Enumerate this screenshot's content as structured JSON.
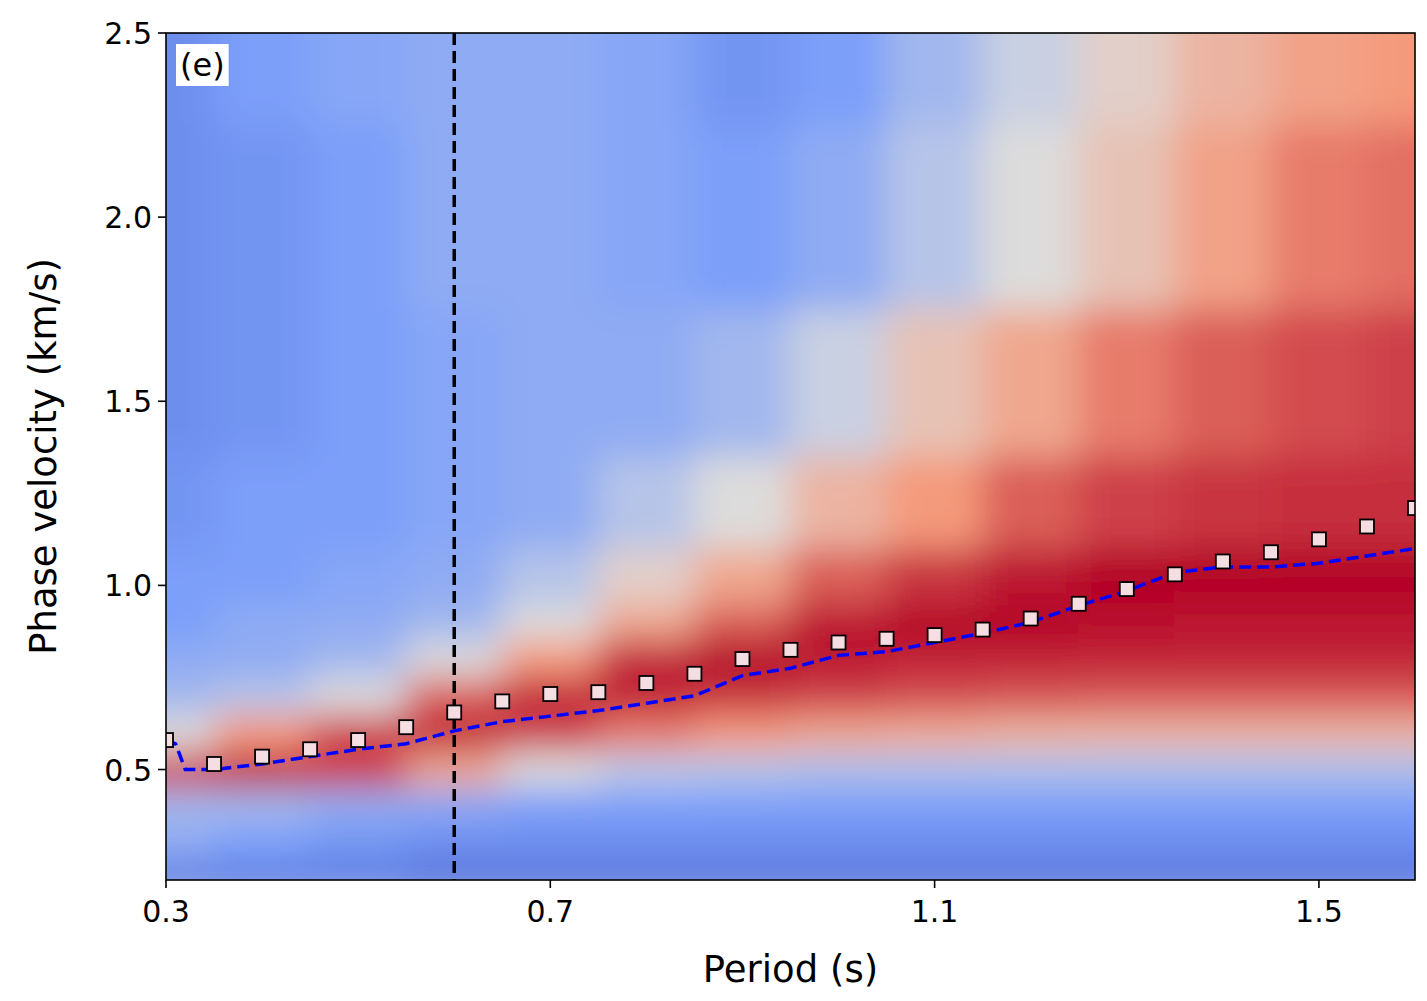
{
  "chart_data": {
    "type": "heatmap",
    "x_label": "Period (s)",
    "y_label": "Phase velocity (km/s)",
    "panel_label": "(e)",
    "xlim": [
      0.3,
      1.6
    ],
    "ylim": [
      0.2,
      2.5
    ],
    "xticks": [
      0.3,
      0.7,
      1.1,
      1.5
    ],
    "yticks": [
      0.5,
      {
        "value": 1.0,
        "label": "1.0"
      },
      1.5,
      {
        "value": 2.0,
        "label": "2.0"
      },
      2.5
    ],
    "heatmap": {
      "x": [
        0.3,
        0.4,
        0.5,
        0.6,
        0.7,
        0.8,
        0.9,
        1.0,
        1.1,
        1.2,
        1.3,
        1.4,
        1.5,
        1.6
      ],
      "y": [
        0.2,
        0.3,
        0.4,
        0.5,
        0.6,
        0.7,
        0.8,
        0.9,
        1.0,
        1.2,
        1.5,
        2.0,
        2.5
      ],
      "range": [
        0,
        1
      ],
      "values": [
        [
          0.15,
          0.15,
          0.15,
          0.12,
          0.12,
          0.12,
          0.12,
          0.12,
          0.12,
          0.12,
          0.12,
          0.12,
          0.12,
          0.12
        ],
        [
          0.3,
          0.25,
          0.22,
          0.2,
          0.2,
          0.2,
          0.2,
          0.2,
          0.2,
          0.2,
          0.2,
          0.2,
          0.2,
          0.2
        ],
        [
          0.35,
          0.35,
          0.3,
          0.28,
          0.25,
          0.25,
          0.25,
          0.25,
          0.25,
          0.25,
          0.25,
          0.25,
          0.25,
          0.25
        ],
        [
          0.9,
          0.95,
          0.9,
          0.7,
          0.5,
          0.42,
          0.4,
          0.38,
          0.38,
          0.38,
          0.38,
          0.38,
          0.38,
          0.38
        ],
        [
          0.5,
          0.75,
          0.9,
          0.95,
          0.9,
          0.8,
          0.75,
          0.7,
          0.68,
          0.66,
          0.65,
          0.65,
          0.65,
          0.65
        ],
        [
          0.35,
          0.4,
          0.5,
          0.85,
          0.95,
          0.95,
          0.92,
          0.9,
          0.88,
          0.87,
          0.86,
          0.86,
          0.86,
          0.86
        ],
        [
          0.3,
          0.3,
          0.35,
          0.5,
          0.75,
          0.95,
          1,
          0.97,
          0.95,
          0.95,
          0.95,
          0.95,
          0.95,
          0.95
        ],
        [
          0.25,
          0.3,
          0.3,
          0.35,
          0.5,
          0.7,
          0.85,
          0.97,
          1,
          1,
          0.98,
          0.97,
          0.97,
          0.97
        ],
        [
          0.25,
          0.25,
          0.28,
          0.3,
          0.4,
          0.55,
          0.7,
          0.85,
          0.92,
          0.97,
          1,
          1,
          1,
          1
        ],
        [
          0.22,
          0.25,
          0.25,
          0.28,
          0.3,
          0.4,
          0.5,
          0.65,
          0.75,
          0.85,
          0.9,
          0.92,
          0.93,
          0.93
        ],
        [
          0.2,
          0.22,
          0.25,
          0.28,
          0.3,
          0.3,
          0.35,
          0.45,
          0.6,
          0.7,
          0.8,
          0.85,
          0.88,
          0.9
        ],
        [
          0.2,
          0.22,
          0.25,
          0.3,
          0.3,
          0.28,
          0.25,
          0.3,
          0.4,
          0.5,
          0.6,
          0.72,
          0.8,
          0.82
        ],
        [
          0.2,
          0.25,
          0.28,
          0.3,
          0.3,
          0.28,
          0.22,
          0.25,
          0.35,
          0.45,
          0.55,
          0.65,
          0.72,
          0.75
        ]
      ]
    },
    "series": [
      {
        "type": "line",
        "color": "#0000ff",
        "line_style": "dashed",
        "x": [
          0.3,
          0.31,
          0.32,
          0.35,
          0.4,
          0.45,
          0.5,
          0.55,
          0.6,
          0.65,
          0.7,
          0.75,
          0.8,
          0.85,
          0.9,
          0.95,
          1.0,
          1.05,
          1.1,
          1.15,
          1.2,
          1.25,
          1.3,
          1.35,
          1.4,
          1.45,
          1.5,
          1.55,
          1.6
        ],
        "values": [
          0.58,
          0.57,
          0.5,
          0.5,
          0.515,
          0.535,
          0.555,
          0.57,
          0.605,
          0.63,
          0.645,
          0.66,
          0.68,
          0.7,
          0.755,
          0.775,
          0.81,
          0.82,
          0.845,
          0.87,
          0.9,
          0.945,
          0.985,
          1.035,
          1.05,
          1.05,
          1.06,
          1.08,
          1.1
        ]
      },
      {
        "type": "scatter",
        "color": "#f5dde2",
        "marker": "square",
        "x": [
          0.3,
          0.35,
          0.4,
          0.45,
          0.5,
          0.55,
          0.6,
          0.65,
          0.7,
          0.75,
          0.8,
          0.85,
          0.9,
          0.95,
          1.0,
          1.05,
          1.1,
          1.15,
          1.2,
          1.25,
          1.3,
          1.35,
          1.4,
          1.45,
          1.5,
          1.55,
          1.6
        ],
        "values": [
          0.58,
          0.515,
          0.535,
          0.555,
          0.58,
          0.615,
          0.655,
          0.685,
          0.705,
          0.71,
          0.735,
          0.76,
          0.8,
          0.825,
          0.845,
          0.855,
          0.865,
          0.88,
          0.91,
          0.95,
          0.99,
          1.03,
          1.065,
          1.09,
          1.125,
          1.16,
          1.21
        ]
      }
    ],
    "annotations": [
      {
        "x": 0.6,
        "color": "#000000",
        "line_style": "dashed"
      }
    ]
  }
}
